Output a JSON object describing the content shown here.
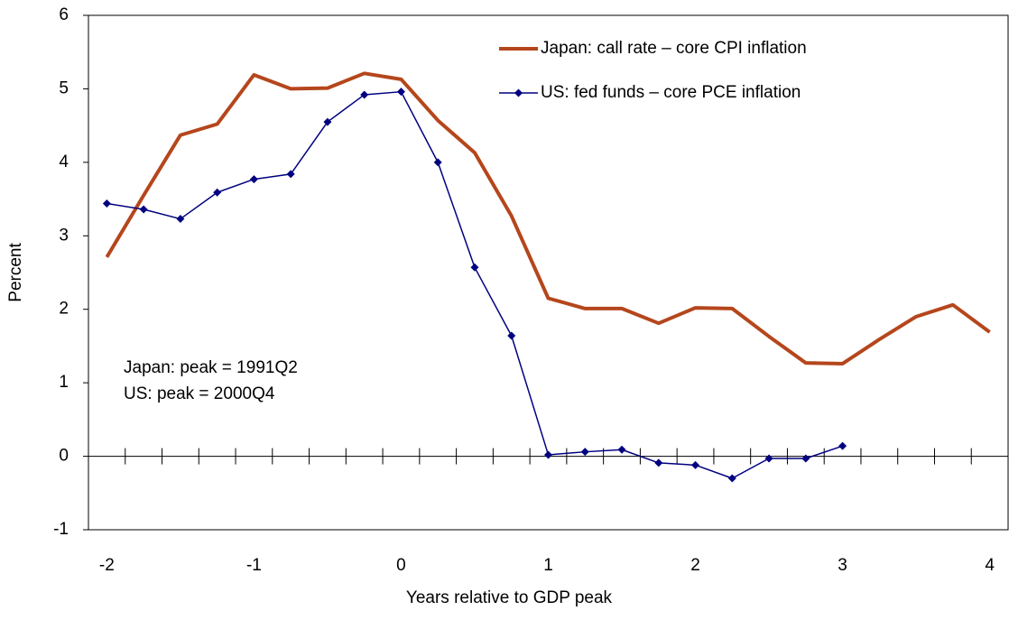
{
  "chart_data": {
    "type": "line",
    "xlabel": "Years relative to GDP peak",
    "ylabel": "Percent",
    "x": [
      -2,
      -1.75,
      -1.5,
      -1.25,
      -1,
      -0.75,
      -0.5,
      -0.25,
      0,
      0.25,
      0.5,
      0.75,
      1,
      1.25,
      1.5,
      1.75,
      2,
      2.25,
      2.5,
      2.75,
      3,
      3.25,
      3.5,
      3.75,
      4
    ],
    "series": [
      {
        "name": "Japan: call rate – core CPI inflation",
        "color": "#b5461c",
        "marker": false,
        "values": [
          2.71,
          3.55,
          4.37,
          4.52,
          5.19,
          5.0,
          5.01,
          5.21,
          5.13,
          4.57,
          4.13,
          3.27,
          2.15,
          2.01,
          2.01,
          1.81,
          2.02,
          2.01,
          1.63,
          1.27,
          1.26,
          1.59,
          1.9,
          2.06,
          1.69
        ]
      },
      {
        "name": "US: fed funds – core PCE inflation",
        "color": "#000080",
        "marker": true,
        "values": [
          3.44,
          3.36,
          3.23,
          3.59,
          3.77,
          3.84,
          4.55,
          4.92,
          4.96,
          4.0,
          2.57,
          1.64,
          0.02,
          0.06,
          0.09,
          -0.09,
          -0.12,
          -0.3,
          -0.03,
          -0.03,
          0.14,
          null,
          null,
          null,
          null
        ]
      }
    ],
    "annotations": [
      "Japan: peak = 1991Q2",
      "US: peak = 2000Q4"
    ],
    "xlim": [
      -2.125,
      4.125
    ],
    "xticks": [
      -2,
      -1,
      0,
      1,
      2,
      3,
      4
    ],
    "xminorticks": [
      -1.875,
      -1.625,
      -1.375,
      -1.125,
      -0.875,
      -0.625,
      -0.375,
      -0.125,
      0.125,
      0.375,
      0.625,
      0.875,
      1.125,
      1.375,
      1.625,
      1.875,
      2.125,
      2.375,
      2.625,
      2.875,
      3.125,
      3.375,
      3.625,
      3.875
    ],
    "ylim": [
      -1,
      6
    ],
    "yticks": [
      -1,
      0,
      1,
      2,
      3,
      4,
      5,
      6
    ],
    "grid": false,
    "legend": "upper right"
  }
}
